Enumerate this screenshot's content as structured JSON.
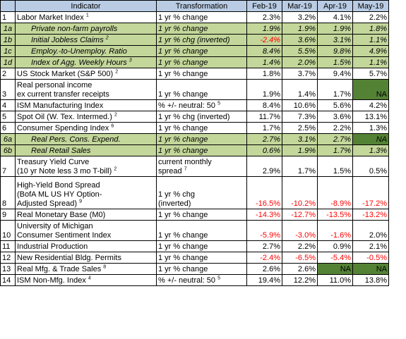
{
  "header": {
    "indicator": "Indicator",
    "transformation": "Transformation",
    "months": [
      "Feb-19",
      "Mar-19",
      "Apr-19",
      "May-19"
    ]
  },
  "rows": [
    {
      "idx": "1",
      "sub": false,
      "lines": [
        "Labor Market Index"
      ],
      "sup": "1",
      "trans": [
        "1 yr % change"
      ],
      "tsup": "",
      "vals": [
        "2.3%",
        "3.2%",
        "4.1%",
        "2.2%"
      ],
      "neg": [
        false,
        false,
        false,
        false
      ],
      "na": [
        false,
        false,
        false,
        false
      ],
      "h": 1
    },
    {
      "idx": "1a",
      "sub": true,
      "lines": [
        "Private non-farm payrolls"
      ],
      "sup": "",
      "trans": [
        "1 yr % change"
      ],
      "tsup": "",
      "vals": [
        "1.9%",
        "1.9%",
        "1.9%",
        "1.8%"
      ],
      "neg": [
        false,
        false,
        false,
        false
      ],
      "na": [
        false,
        false,
        false,
        false
      ],
      "h": 1
    },
    {
      "idx": "1b",
      "sub": true,
      "lines": [
        "Initial Jobless Claims"
      ],
      "sup": "2",
      "trans": [
        "1 yr % chg (inverted)"
      ],
      "tsup": "",
      "vals": [
        "-2.4%",
        "3.6%",
        "3.1%",
        "1.1%"
      ],
      "neg": [
        true,
        false,
        false,
        false
      ],
      "na": [
        false,
        false,
        false,
        false
      ],
      "h": 1
    },
    {
      "idx": "1c",
      "sub": true,
      "lines": [
        "Employ.-to-Unemploy. Ratio"
      ],
      "sup": "",
      "trans": [
        "1 yr % change"
      ],
      "tsup": "",
      "vals": [
        "8.4%",
        "5.5%",
        "9.8%",
        "4.9%"
      ],
      "neg": [
        false,
        false,
        false,
        false
      ],
      "na": [
        false,
        false,
        false,
        false
      ],
      "h": 1
    },
    {
      "idx": "1d",
      "sub": true,
      "lines": [
        "Index of Agg. Weekly Hours"
      ],
      "sup": "3",
      "trans": [
        "1 yr % change"
      ],
      "tsup": "",
      "vals": [
        "1.4%",
        "2.0%",
        "1.5%",
        "1.1%"
      ],
      "neg": [
        false,
        false,
        false,
        false
      ],
      "na": [
        false,
        false,
        false,
        false
      ],
      "h": 1
    },
    {
      "idx": "2",
      "sub": false,
      "lines": [
        "US Stock Market (S&P 500)"
      ],
      "sup": "2",
      "trans": [
        "1 yr % change"
      ],
      "tsup": "",
      "vals": [
        "1.8%",
        "3.7%",
        "9.4%",
        "5.7%"
      ],
      "neg": [
        false,
        false,
        false,
        false
      ],
      "na": [
        false,
        false,
        false,
        false
      ],
      "h": 1
    },
    {
      "idx": "3",
      "sub": false,
      "lines": [
        "Real personal income",
        "ex current transfer receipts"
      ],
      "sup": "",
      "trans": [
        "1 yr % change"
      ],
      "tsup": "",
      "vals": [
        "1.9%",
        "1.4%",
        "1.7%",
        "NA"
      ],
      "neg": [
        false,
        false,
        false,
        false
      ],
      "na": [
        false,
        false,
        false,
        true
      ],
      "h": 2
    },
    {
      "idx": "4",
      "sub": false,
      "lines": [
        "ISM Manufacturing Index"
      ],
      "sup": "",
      "trans": [
        "% +/- neutral: 50"
      ],
      "tsup": "5",
      "vals": [
        "8.4%",
        "10.6%",
        "5.6%",
        "4.2%"
      ],
      "neg": [
        false,
        false,
        false,
        false
      ],
      "na": [
        false,
        false,
        false,
        false
      ],
      "h": 1
    },
    {
      "idx": "5",
      "sub": false,
      "lines": [
        "Spot Oil (W. Tex. Intermed.)"
      ],
      "sup": "2",
      "trans": [
        "1 yr % chg (inverted)"
      ],
      "tsup": "",
      "vals": [
        "11.7%",
        "7.3%",
        "3.6%",
        "13.1%"
      ],
      "neg": [
        false,
        false,
        false,
        false
      ],
      "na": [
        false,
        false,
        false,
        false
      ],
      "h": 1
    },
    {
      "idx": "6",
      "sub": false,
      "lines": [
        "Consumer Spending Index"
      ],
      "sup": "6",
      "trans": [
        "1 yr % change"
      ],
      "tsup": "",
      "vals": [
        "1.7%",
        "2.5%",
        "2.2%",
        "1.3%"
      ],
      "neg": [
        false,
        false,
        false,
        false
      ],
      "na": [
        false,
        false,
        false,
        false
      ],
      "h": 1
    },
    {
      "idx": "6a",
      "sub": true,
      "lines": [
        "Real Pers. Cons. Expend."
      ],
      "sup": "",
      "trans": [
        "1 yr % change"
      ],
      "tsup": "",
      "vals": [
        "2.7%",
        "3.1%",
        "2.7%",
        "NA"
      ],
      "neg": [
        false,
        false,
        false,
        false
      ],
      "na": [
        false,
        false,
        false,
        true
      ],
      "h": 1
    },
    {
      "idx": "6b",
      "sub": true,
      "lines": [
        "Real Retail Sales"
      ],
      "sup": "",
      "trans": [
        "1 yr % change"
      ],
      "tsup": "",
      "vals": [
        "0.6%",
        "1.9%",
        "1.7%",
        "1.3%"
      ],
      "neg": [
        false,
        false,
        false,
        false
      ],
      "na": [
        false,
        false,
        false,
        false
      ],
      "h": 1
    },
    {
      "idx": "7",
      "sub": false,
      "lines": [
        "Treasury Yield Curve",
        "(10 yr Note less 3 mo T-bill)"
      ],
      "sup": "2",
      "trans": [
        "current monthly",
        "spread"
      ],
      "tsup": "7",
      "vals": [
        "2.9%",
        "1.7%",
        "1.5%",
        "0.5%"
      ],
      "neg": [
        false,
        false,
        false,
        false
      ],
      "na": [
        false,
        false,
        false,
        false
      ],
      "h": 2
    },
    {
      "idx": "8",
      "sub": false,
      "lines": [
        "High-Yield Bond Spread",
        "(BofA ML US HY Option-",
        "Adjusted Spread)"
      ],
      "sup": "9",
      "trans": [
        "1 yr % chg",
        "(inverted)"
      ],
      "tsup": "",
      "vals": [
        "-16.5%",
        "-10.2%",
        "-8.9%",
        "-17.2%"
      ],
      "neg": [
        true,
        true,
        true,
        true
      ],
      "na": [
        false,
        false,
        false,
        false
      ],
      "h": 3
    },
    {
      "idx": "9",
      "sub": false,
      "lines": [
        "Real Monetary Base (M0)"
      ],
      "sup": "",
      "trans": [
        "1 yr % change"
      ],
      "tsup": "",
      "vals": [
        "-14.3%",
        "-12.7%",
        "-13.5%",
        "-13.2%"
      ],
      "neg": [
        true,
        true,
        true,
        true
      ],
      "na": [
        false,
        false,
        false,
        false
      ],
      "h": 1
    },
    {
      "idx": "10",
      "sub": false,
      "lines": [
        "University of Michigan",
        "Consumer Sentiment Index"
      ],
      "sup": "",
      "trans": [
        "1 yr % change"
      ],
      "tsup": "",
      "vals": [
        "-5.9%",
        "-3.0%",
        "-1.6%",
        "2.0%"
      ],
      "neg": [
        true,
        true,
        true,
        false
      ],
      "na": [
        false,
        false,
        false,
        false
      ],
      "h": 2
    },
    {
      "idx": "11",
      "sub": false,
      "lines": [
        "Industrial Production"
      ],
      "sup": "",
      "trans": [
        "1 yr % change"
      ],
      "tsup": "",
      "vals": [
        "2.7%",
        "2.2%",
        "0.9%",
        "2.1%"
      ],
      "neg": [
        false,
        false,
        false,
        false
      ],
      "na": [
        false,
        false,
        false,
        false
      ],
      "h": 1
    },
    {
      "idx": "12",
      "sub": false,
      "lines": [
        "New Residential Bldg. Permits"
      ],
      "sup": "",
      "trans": [
        "1 yr % change"
      ],
      "tsup": "",
      "vals": [
        "-2.4%",
        "-6.5%",
        "-5.4%",
        "-0.5%"
      ],
      "neg": [
        true,
        true,
        true,
        true
      ],
      "na": [
        false,
        false,
        false,
        false
      ],
      "h": 1
    },
    {
      "idx": "13",
      "sub": false,
      "lines": [
        "Real Mfg. & Trade Sales"
      ],
      "sup": "8",
      "trans": [
        "1 yr % change"
      ],
      "tsup": "",
      "vals": [
        "2.6%",
        "2.6%",
        "NA",
        "NA"
      ],
      "neg": [
        false,
        false,
        false,
        false
      ],
      "na": [
        false,
        false,
        true,
        true
      ],
      "h": 1
    },
    {
      "idx": "14",
      "sub": false,
      "lines": [
        "ISM Non-Mfg. Index"
      ],
      "sup": "4",
      "trans": [
        "% +/- neutral: 50"
      ],
      "tsup": "5",
      "vals": [
        "19.4%",
        "12.2%",
        "11.0%",
        "13.8%"
      ],
      "neg": [
        false,
        false,
        false,
        false
      ],
      "na": [
        false,
        false,
        false,
        false
      ],
      "h": 1
    }
  ]
}
